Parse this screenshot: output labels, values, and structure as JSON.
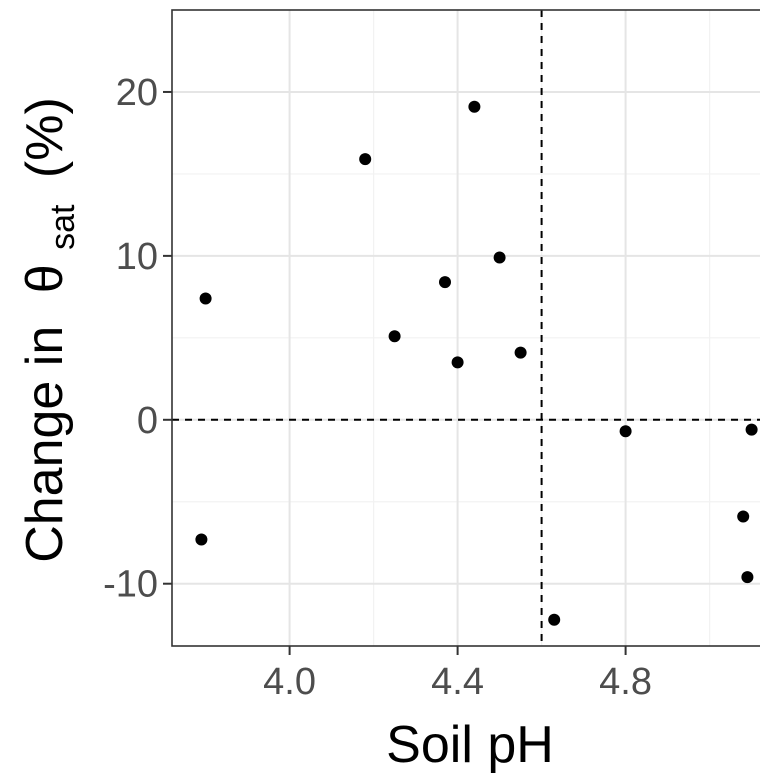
{
  "chart_data": {
    "type": "scatter",
    "xlabel": "Soil pH",
    "ylabel_prefix": "Change in",
    "ylabel_symbol": "θ",
    "ylabel_subscript": "sat",
    "ylabel_suffix": "(%)",
    "xlim": [
      3.72,
      5.12
    ],
    "ylim": [
      -13.8,
      25
    ],
    "x_ticks": [
      4.0,
      4.4,
      4.8
    ],
    "x_tick_labels": [
      "4.0",
      "4.4",
      "4.8"
    ],
    "x_minor_ticks": [
      4.2,
      4.6,
      5.0
    ],
    "y_ticks": [
      -10,
      0,
      10,
      20
    ],
    "y_tick_labels": [
      "-10",
      "0",
      "10",
      "20"
    ],
    "y_minor_ticks": [
      -5,
      5,
      15
    ],
    "grid": true,
    "reference_lines": {
      "vline_x": 4.6,
      "hline_y": 0,
      "style": "dashed"
    },
    "points": [
      {
        "x": 3.79,
        "y": -7.3
      },
      {
        "x": 3.8,
        "y": 7.4
      },
      {
        "x": 4.18,
        "y": 15.9
      },
      {
        "x": 4.25,
        "y": 5.1
      },
      {
        "x": 4.37,
        "y": 8.4
      },
      {
        "x": 4.4,
        "y": 3.5
      },
      {
        "x": 4.44,
        "y": 19.1
      },
      {
        "x": 4.5,
        "y": 9.9
      },
      {
        "x": 4.55,
        "y": 4.1
      },
      {
        "x": 4.63,
        "y": -12.2
      },
      {
        "x": 4.8,
        "y": -0.7
      },
      {
        "x": 5.08,
        "y": -5.9
      },
      {
        "x": 5.09,
        "y": -9.6
      },
      {
        "x": 5.1,
        "y": -0.6
      }
    ],
    "point_color": "#000000"
  }
}
